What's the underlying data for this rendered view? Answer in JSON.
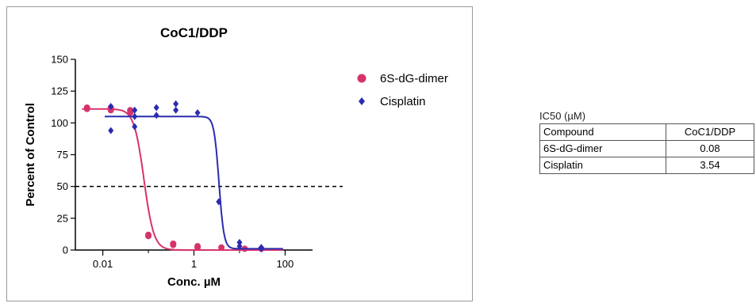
{
  "chart_data": {
    "type": "scatter",
    "title": "CoC1/DDP",
    "xlabel": "Conc. µM",
    "ylabel": "Percent of Control",
    "xscale": "log",
    "xlim": [
      0.0025,
      400
    ],
    "ylim": [
      0,
      150
    ],
    "x_ticks": [
      0.01,
      1,
      100
    ],
    "x_tick_labels": [
      "0.01",
      "1",
      "100"
    ],
    "y_ticks": [
      0,
      25,
      50,
      75,
      100,
      125,
      150
    ],
    "y_tick_labels": [
      "0",
      "25",
      "50",
      "75",
      "100",
      "125",
      "150"
    ],
    "reference_line": {
      "y": 50,
      "style": "dashed"
    },
    "legend_position": "top-right",
    "series": [
      {
        "name": "6S-dG-dimer",
        "color": "#d6336c",
        "marker": "circle",
        "fit": {
          "top": 111,
          "bottom": 0,
          "ic50": 0.08,
          "hill": 4
        },
        "points": [
          {
            "x": 0.0045,
            "y": 111
          },
          {
            "x": 0.0045,
            "y": 112
          },
          {
            "x": 0.015,
            "y": 112
          },
          {
            "x": 0.015,
            "y": 110
          },
          {
            "x": 0.04,
            "y": 110
          },
          {
            "x": 0.04,
            "y": 108
          },
          {
            "x": 0.1,
            "y": 11
          },
          {
            "x": 0.1,
            "y": 12
          },
          {
            "x": 0.35,
            "y": 5
          },
          {
            "x": 0.35,
            "y": 4
          },
          {
            "x": 1.2,
            "y": 3
          },
          {
            "x": 1.2,
            "y": 2
          },
          {
            "x": 4,
            "y": 2
          },
          {
            "x": 13,
            "y": 1
          },
          {
            "x": 30,
            "y": 1
          }
        ]
      },
      {
        "name": "Cisplatin",
        "color": "#2b2bb0",
        "marker": "diamond",
        "fit": {
          "top": 105,
          "bottom": 1,
          "ic50": 3.54,
          "hill": 8
        },
        "points": [
          {
            "x": 0.015,
            "y": 94
          },
          {
            "x": 0.015,
            "y": 113
          },
          {
            "x": 0.05,
            "y": 105
          },
          {
            "x": 0.05,
            "y": 97
          },
          {
            "x": 0.05,
            "y": 110
          },
          {
            "x": 0.15,
            "y": 106
          },
          {
            "x": 0.15,
            "y": 112
          },
          {
            "x": 0.4,
            "y": 115
          },
          {
            "x": 0.4,
            "y": 110
          },
          {
            "x": 1.2,
            "y": 108
          },
          {
            "x": 3.5,
            "y": 38
          },
          {
            "x": 10,
            "y": 6
          },
          {
            "x": 10,
            "y": 3
          },
          {
            "x": 30,
            "y": 2
          },
          {
            "x": 30,
            "y": 1
          }
        ]
      }
    ]
  },
  "ic50_table": {
    "caption": "IC50 (µM)",
    "header": [
      "Compound",
      "CoC1/DDP"
    ],
    "rows": [
      [
        "6S-dG-dimer",
        "0.08"
      ],
      [
        "Cisplatin",
        "3.54"
      ]
    ]
  }
}
